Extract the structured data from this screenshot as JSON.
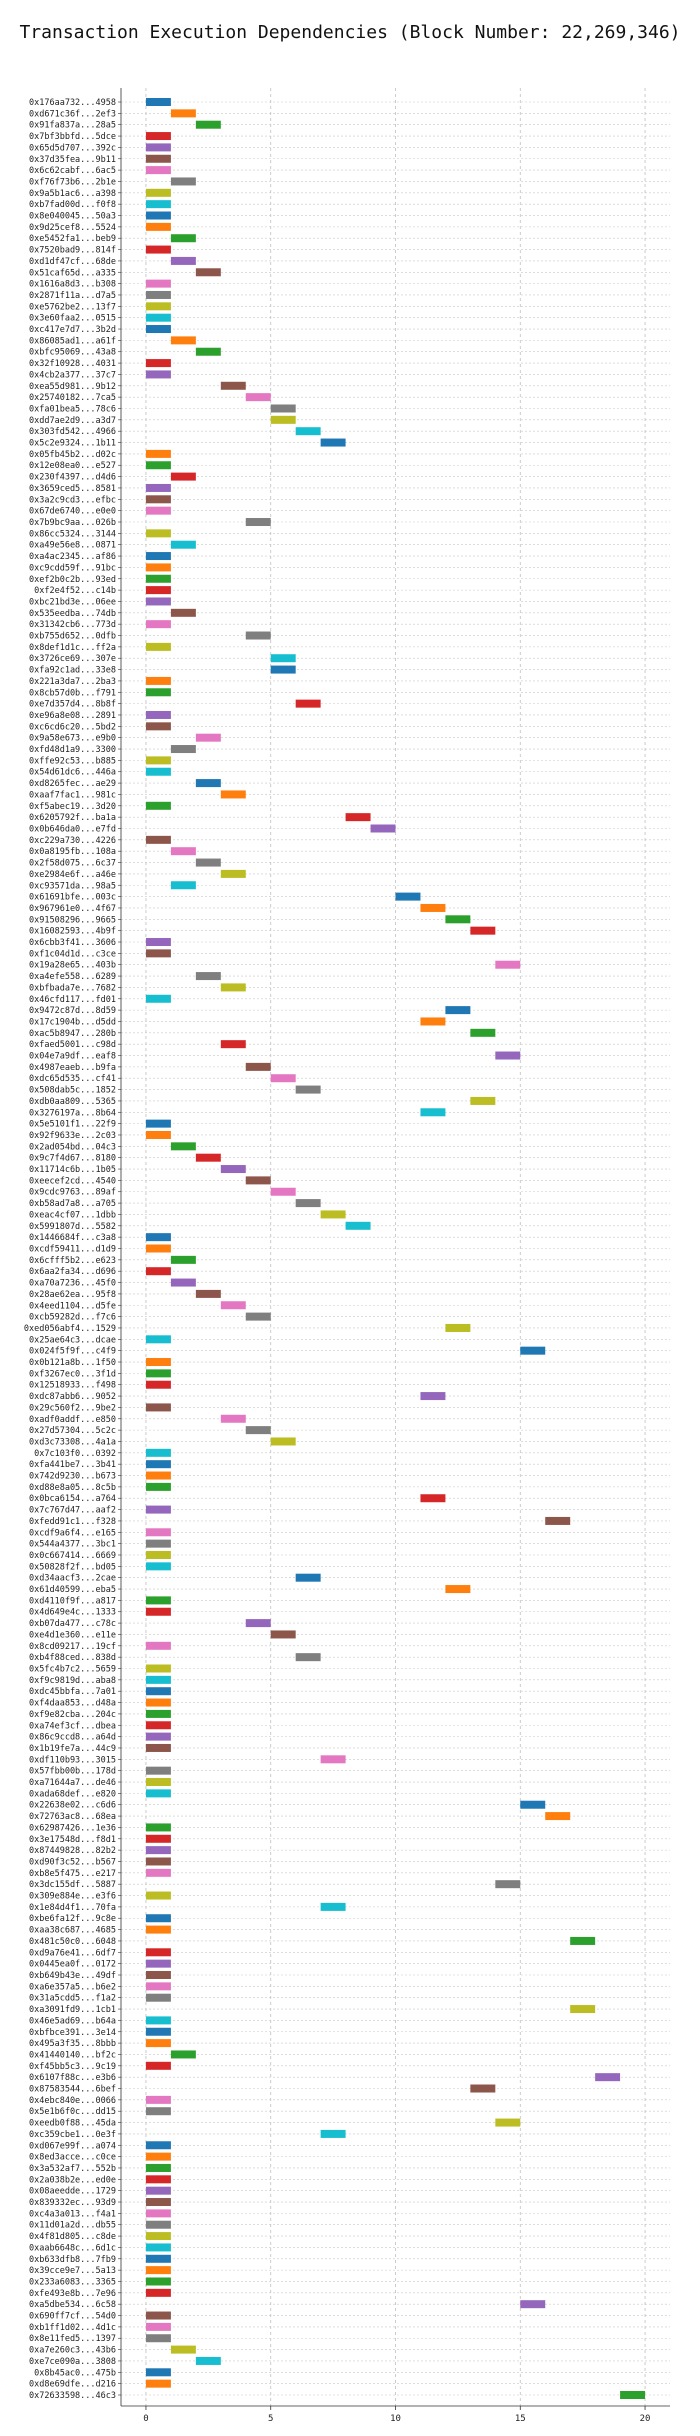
{
  "chart_data": {
    "type": "gantt",
    "title": "Transaction Execution Dependencies (Block Number: 22,269,346)",
    "xlabel": "",
    "ylabel": "",
    "x_ticks": [
      0,
      5,
      10,
      15,
      20
    ],
    "xlim": [
      -1,
      21
    ],
    "grid": true,
    "colors": [
      "#1f77b4",
      "#ff7f0e",
      "#2ca02c",
      "#d62728",
      "#9467bd",
      "#8c564b",
      "#e377c2",
      "#7f7f7f",
      "#bcbd22",
      "#17becf"
    ],
    "bar_width": 1,
    "transactions": [
      {
        "label": "0x176aa732...4958",
        "start": 0,
        "color": 0
      },
      {
        "label": "0xd671c36f...2ef3",
        "start": 1,
        "color": 1
      },
      {
        "label": "0x91fa837a...28a5",
        "start": 2,
        "color": 2
      },
      {
        "label": "0x7bf3bbfd...5dce",
        "start": 0,
        "color": 3
      },
      {
        "label": "0x65d5d707...392c",
        "start": 0,
        "color": 4
      },
      {
        "label": "0x37d35fea...9b11",
        "start": 0,
        "color": 5
      },
      {
        "label": "0x6c62cabf...6ac5",
        "start": 0,
        "color": 6
      },
      {
        "label": "0xf76f73b6...2b1e",
        "start": 1,
        "color": 7
      },
      {
        "label": "0x9a5b1ac6...a398",
        "start": 0,
        "color": 8
      },
      {
        "label": "0xb7fad00d...f0f8",
        "start": 0,
        "color": 9
      },
      {
        "label": "0x8e040045...50a3",
        "start": 0,
        "color": 0
      },
      {
        "label": "0x9d25cef8...5524",
        "start": 0,
        "color": 1
      },
      {
        "label": "0xe5452fa1...beb9",
        "start": 1,
        "color": 2
      },
      {
        "label": "0x7520bad9...814f",
        "start": 0,
        "color": 3
      },
      {
        "label": "0xd1df47cf...68de",
        "start": 1,
        "color": 4
      },
      {
        "label": "0x51caf65d...a335",
        "start": 2,
        "color": 5
      },
      {
        "label": "0x1616a8d3...b308",
        "start": 0,
        "color": 6
      },
      {
        "label": "0x2871f11a...d7a5",
        "start": 0,
        "color": 7
      },
      {
        "label": "0xe5762be2...13f7",
        "start": 0,
        "color": 8
      },
      {
        "label": "0x3e60faa2...0515",
        "start": 0,
        "color": 9
      },
      {
        "label": "0xc417e7d7...3b2d",
        "start": 0,
        "color": 0
      },
      {
        "label": "0x86085ad1...a61f",
        "start": 1,
        "color": 1
      },
      {
        "label": "0xbfc95069...43a8",
        "start": 2,
        "color": 2
      },
      {
        "label": "0x32f10928...4031",
        "start": 0,
        "color": 3
      },
      {
        "label": "0x4cb2a377...37c7",
        "start": 0,
        "color": 4
      },
      {
        "label": "0xea55d981...9b12",
        "start": 3,
        "color": 5
      },
      {
        "label": "0x25740182...7ca5",
        "start": 4,
        "color": 6
      },
      {
        "label": "0xfa01bea5...78c6",
        "start": 5,
        "color": 7
      },
      {
        "label": "0xdd7ae2d9...a3d7",
        "start": 5,
        "color": 8
      },
      {
        "label": "0x303fd542...4966",
        "start": 6,
        "color": 9
      },
      {
        "label": "0x5c2e9324...1b11",
        "start": 7,
        "color": 0
      },
      {
        "label": "0x05fb45b2...d02c",
        "start": 0,
        "color": 1
      },
      {
        "label": "0x12e08ea0...e527",
        "start": 0,
        "color": 2
      },
      {
        "label": "0x230f4397...d4d6",
        "start": 1,
        "color": 3
      },
      {
        "label": "0x3659ced5...8581",
        "start": 0,
        "color": 4
      },
      {
        "label": "0x3a2c9cd3...efbc",
        "start": 0,
        "color": 5
      },
      {
        "label": "0x67de6740...e0e0",
        "start": 0,
        "color": 6
      },
      {
        "label": "0x7b9bc9aa...026b",
        "start": 4,
        "color": 7
      },
      {
        "label": "0x86cc5324...3144",
        "start": 0,
        "color": 8
      },
      {
        "label": "0xa49e56e8...0871",
        "start": 1,
        "color": 9
      },
      {
        "label": "0xa4ac2345...af86",
        "start": 0,
        "color": 0
      },
      {
        "label": "0xc9cdd59f...91bc",
        "start": 0,
        "color": 1
      },
      {
        "label": "0xef2b0c2b...93ed",
        "start": 0,
        "color": 2
      },
      {
        "label": "0xf2e4f52...c14b",
        "start": 0,
        "color": 3
      },
      {
        "label": "0xbc21bd3e...06ee",
        "start": 0,
        "color": 4
      },
      {
        "label": "0x535eedba...74db",
        "start": 1,
        "color": 5
      },
      {
        "label": "0x31342cb6...773d",
        "start": 0,
        "color": 6
      },
      {
        "label": "0xb755d652...0dfb",
        "start": 4,
        "color": 7
      },
      {
        "label": "0x8def1d1c...ff2a",
        "start": 0,
        "color": 8
      },
      {
        "label": "0x3726ce69...307e",
        "start": 5,
        "color": 9
      },
      {
        "label": "0xfa92c1ad...33e8",
        "start": 5,
        "color": 0
      },
      {
        "label": "0x221a3da7...2ba3",
        "start": 0,
        "color": 1
      },
      {
        "label": "0x8cb57d0b...f791",
        "start": 0,
        "color": 2
      },
      {
        "label": "0xe7d357d4...8b8f",
        "start": 6,
        "color": 3
      },
      {
        "label": "0xe96a8e08...2891",
        "start": 0,
        "color": 4
      },
      {
        "label": "0xc6cd6c20...5bd2",
        "start": 0,
        "color": 5
      },
      {
        "label": "0x9a58e673...e9b0",
        "start": 2,
        "color": 6
      },
      {
        "label": "0xfd48d1a9...3300",
        "start": 1,
        "color": 7
      },
      {
        "label": "0xffe92c53...b885",
        "start": 0,
        "color": 8
      },
      {
        "label": "0x54d61dc6...446a",
        "start": 0,
        "color": 9
      },
      {
        "label": "0xd8265fec...ae29",
        "start": 2,
        "color": 0
      },
      {
        "label": "0xaaf7fac1...981c",
        "start": 3,
        "color": 1
      },
      {
        "label": "0xf5abec19...3d20",
        "start": 0,
        "color": 2
      },
      {
        "label": "0x6205792f...ba1a",
        "start": 8,
        "color": 3
      },
      {
        "label": "0x0b646da0...e7fd",
        "start": 9,
        "color": 4
      },
      {
        "label": "0xc229a730...4226",
        "start": 0,
        "color": 5
      },
      {
        "label": "0x0a8195fb...108a",
        "start": 1,
        "color": 6
      },
      {
        "label": "0x2f58d075...6c37",
        "start": 2,
        "color": 7
      },
      {
        "label": "0xe2984e6f...a46e",
        "start": 3,
        "color": 8
      },
      {
        "label": "0xc93571da...98a5",
        "start": 1,
        "color": 9
      },
      {
        "label": "0x61691bfe...003c",
        "start": 10,
        "color": 0
      },
      {
        "label": "0x967961e0...4f67",
        "start": 11,
        "color": 1
      },
      {
        "label": "0x91508296...9665",
        "start": 12,
        "color": 2
      },
      {
        "label": "0x16082593...4b9f",
        "start": 13,
        "color": 3
      },
      {
        "label": "0x6cbb3f41...3606",
        "start": 0,
        "color": 4
      },
      {
        "label": "0xf1c04d1d...c3ce",
        "start": 0,
        "color": 5
      },
      {
        "label": "0x19a28e65...403b",
        "start": 14,
        "color": 6
      },
      {
        "label": "0xa4efe558...6289",
        "start": 2,
        "color": 7
      },
      {
        "label": "0xbfbada7e...7682",
        "start": 3,
        "color": 8
      },
      {
        "label": "0x46cfd117...fd01",
        "start": 0,
        "color": 9
      },
      {
        "label": "0x9472c87d...8d59",
        "start": 12,
        "color": 0
      },
      {
        "label": "0x17c1904b...d5dd",
        "start": 11,
        "color": 1
      },
      {
        "label": "0xac5b8947...280b",
        "start": 13,
        "color": 2
      },
      {
        "label": "0xfaed5001...c98d",
        "start": 3,
        "color": 3
      },
      {
        "label": "0x04e7a9df...eaf8",
        "start": 14,
        "color": 4
      },
      {
        "label": "0x4987eaeb...b9fa",
        "start": 4,
        "color": 5
      },
      {
        "label": "0xdc65d535...cf41",
        "start": 5,
        "color": 6
      },
      {
        "label": "0x508dab5c...1852",
        "start": 6,
        "color": 7
      },
      {
        "label": "0xdb0aa809...5365",
        "start": 13,
        "color": 8
      },
      {
        "label": "0x3276197a...8b64",
        "start": 11,
        "color": 9
      },
      {
        "label": "0x5e5101f1...22f9",
        "start": 0,
        "color": 0
      },
      {
        "label": "0x92f9633e...2c03",
        "start": 0,
        "color": 1
      },
      {
        "label": "0x2ad054bd...04c3",
        "start": 1,
        "color": 2
      },
      {
        "label": "0x9c7f4d67...8180",
        "start": 2,
        "color": 3
      },
      {
        "label": "0x11714c6b...1b05",
        "start": 3,
        "color": 4
      },
      {
        "label": "0xeecef2cd...4540",
        "start": 4,
        "color": 5
      },
      {
        "label": "0x9cdc9763...89af",
        "start": 5,
        "color": 6
      },
      {
        "label": "0xb58ad7a8...a705",
        "start": 6,
        "color": 7
      },
      {
        "label": "0xeac4cf07...1dbb",
        "start": 7,
        "color": 8
      },
      {
        "label": "0x5991807d...5582",
        "start": 8,
        "color": 9
      },
      {
        "label": "0x1446684f...c3a8",
        "start": 0,
        "color": 0
      },
      {
        "label": "0xcdf59411...d1d9",
        "start": 0,
        "color": 1
      },
      {
        "label": "0x6cfff5b2...e623",
        "start": 1,
        "color": 2
      },
      {
        "label": "0x6aa2fa34...d696",
        "start": 0,
        "color": 3
      },
      {
        "label": "0xa70a7236...45f0",
        "start": 1,
        "color": 4
      },
      {
        "label": "0x28ae62ea...95f8",
        "start": 2,
        "color": 5
      },
      {
        "label": "0x4eed1104...d5fe",
        "start": 3,
        "color": 6
      },
      {
        "label": "0xcb59282d...f7c6",
        "start": 4,
        "color": 7
      },
      {
        "label": "0xed056abf4...1529",
        "start": 12,
        "color": 8
      },
      {
        "label": "0x25ae64c3...dcae",
        "start": 0,
        "color": 9
      },
      {
        "label": "0x024f5f9f...c4f9",
        "start": 15,
        "color": 0
      },
      {
        "label": "0x0b121a8b...1f50",
        "start": 0,
        "color": 1
      },
      {
        "label": "0xf3267ec0...3f1d",
        "start": 0,
        "color": 2
      },
      {
        "label": "0x12518933...f498",
        "start": 0,
        "color": 3
      },
      {
        "label": "0xdc87abb6...9052",
        "start": 11,
        "color": 4
      },
      {
        "label": "0x29c560f2...9be2",
        "start": 0,
        "color": 5
      },
      {
        "label": "0xadf0addf...e850",
        "start": 3,
        "color": 6
      },
      {
        "label": "0x27d57304...5c2c",
        "start": 4,
        "color": 7
      },
      {
        "label": "0xd3c73308...4a1a",
        "start": 5,
        "color": 8
      },
      {
        "label": "0x7c103f0...0392",
        "start": 0,
        "color": 9
      },
      {
        "label": "0xfa441be7...3b41",
        "start": 0,
        "color": 0
      },
      {
        "label": "0x742d9230...b673",
        "start": 0,
        "color": 1
      },
      {
        "label": "0xd88e8a05...8c5b",
        "start": 0,
        "color": 2
      },
      {
        "label": "0x0bca6154...a764",
        "start": 11,
        "color": 3
      },
      {
        "label": "0x7c767d47...aaf2",
        "start": 0,
        "color": 4
      },
      {
        "label": "0xfedd91c1...f328",
        "start": 16,
        "color": 5
      },
      {
        "label": "0xcdf9a6f4...e165",
        "start": 0,
        "color": 6
      },
      {
        "label": "0x544a4377...3bc1",
        "start": 0,
        "color": 7
      },
      {
        "label": "0x0c667414...6669",
        "start": 0,
        "color": 8
      },
      {
        "label": "0x50828f2f...bd05",
        "start": 0,
        "color": 9
      },
      {
        "label": "0xd34aacf3...2cae",
        "start": 6,
        "color": 0
      },
      {
        "label": "0x61d40599...eba5",
        "start": 12,
        "color": 1
      },
      {
        "label": "0xd4110f9f...a817",
        "start": 0,
        "color": 2
      },
      {
        "label": "0x4d649e4c...1333",
        "start": 0,
        "color": 3
      },
      {
        "label": "0xb07da477...c78c",
        "start": 4,
        "color": 4
      },
      {
        "label": "0xe4d1e360...e11e",
        "start": 5,
        "color": 5
      },
      {
        "label": "0x8cd09217...19cf",
        "start": 0,
        "color": 6
      },
      {
        "label": "0xb4f88ced...838d",
        "start": 6,
        "color": 7
      },
      {
        "label": "0x5fc4b7c2...5659",
        "start": 0,
        "color": 8
      },
      {
        "label": "0xf9c9819d...aba8",
        "start": 0,
        "color": 9
      },
      {
        "label": "0xdc45bbfa...7a01",
        "start": 0,
        "color": 0
      },
      {
        "label": "0xf4daa853...d48a",
        "start": 0,
        "color": 1
      },
      {
        "label": "0xf9e82cba...204c",
        "start": 0,
        "color": 2
      },
      {
        "label": "0xa74ef3cf...dbea",
        "start": 0,
        "color": 3
      },
      {
        "label": "0x86c9ccd8...a64d",
        "start": 0,
        "color": 4
      },
      {
        "label": "0x1b19fe7a...44c9",
        "start": 0,
        "color": 5
      },
      {
        "label": "0xdf110b93...3015",
        "start": 7,
        "color": 6
      },
      {
        "label": "0x57fbb00b...178d",
        "start": 0,
        "color": 7
      },
      {
        "label": "0xa71644a7...de46",
        "start": 0,
        "color": 8
      },
      {
        "label": "0xada68def...e820",
        "start": 0,
        "color": 9
      },
      {
        "label": "0x22638e02...c6d6",
        "start": 15,
        "color": 0
      },
      {
        "label": "0x72763ac8...68ea",
        "start": 16,
        "color": 1
      },
      {
        "label": "0x62987426...1e36",
        "start": 0,
        "color": 2
      },
      {
        "label": "0x3e17548d...f8d1",
        "start": 0,
        "color": 3
      },
      {
        "label": "0x87449828...82b2",
        "start": 0,
        "color": 4
      },
      {
        "label": "0xd90f3c52...b567",
        "start": 0,
        "color": 5
      },
      {
        "label": "0xb8e5f475...e217",
        "start": 0,
        "color": 6
      },
      {
        "label": "0x3dc155df...5887",
        "start": 14,
        "color": 7
      },
      {
        "label": "0x309e884e...e3f6",
        "start": 0,
        "color": 8
      },
      {
        "label": "0x1e84d4f1...70fa",
        "start": 7,
        "color": 9
      },
      {
        "label": "0xbe6fa12f...9c8e",
        "start": 0,
        "color": 0
      },
      {
        "label": "0xaa38c687...4685",
        "start": 0,
        "color": 1
      },
      {
        "label": "0x481c50c0...6048",
        "start": 17,
        "color": 2
      },
      {
        "label": "0xd9a76e41...6df7",
        "start": 0,
        "color": 3
      },
      {
        "label": "0x0445ea0f...0172",
        "start": 0,
        "color": 4
      },
      {
        "label": "0xb649b43e...49df",
        "start": 0,
        "color": 5
      },
      {
        "label": "0xa6e357a5...b6e2",
        "start": 0,
        "color": 6
      },
      {
        "label": "0x31a5cdd5...f1a2",
        "start": 0,
        "color": 7
      },
      {
        "label": "0xa3091fd9...1cb1",
        "start": 17,
        "color": 8
      },
      {
        "label": "0x46e5ad69...b64a",
        "start": 0,
        "color": 9
      },
      {
        "label": "0xbfbce391...3e14",
        "start": 0,
        "color": 0
      },
      {
        "label": "0x495a3f35...8bbb",
        "start": 0,
        "color": 1
      },
      {
        "label": "0x41440140...bf2c",
        "start": 1,
        "color": 2
      },
      {
        "label": "0xf45bb5c3...9c19",
        "start": 0,
        "color": 3
      },
      {
        "label": "0x6107f88c...e3b6",
        "start": 18,
        "color": 4
      },
      {
        "label": "0x87583544...6bef",
        "start": 13,
        "color": 5
      },
      {
        "label": "0x4ebc840e...0066",
        "start": 0,
        "color": 6
      },
      {
        "label": "0x5e1b6f0c...dd15",
        "start": 0,
        "color": 7
      },
      {
        "label": "0xeedb0f88...45da",
        "start": 14,
        "color": 8
      },
      {
        "label": "0xc359cbe1...0e3f",
        "start": 7,
        "color": 9
      },
      {
        "label": "0xd067e99f...a074",
        "start": 0,
        "color": 0
      },
      {
        "label": "0x8ed3acce...c0ce",
        "start": 0,
        "color": 1
      },
      {
        "label": "0x3a532af7...552b",
        "start": 0,
        "color": 2
      },
      {
        "label": "0x2a038b2e...ed0e",
        "start": 0,
        "color": 3
      },
      {
        "label": "0x08aeedde...1729",
        "start": 0,
        "color": 4
      },
      {
        "label": "0x839332ec...93d9",
        "start": 0,
        "color": 5
      },
      {
        "label": "0xc4a3a013...f4a1",
        "start": 0,
        "color": 6
      },
      {
        "label": "0x11d01a2d...db55",
        "start": 0,
        "color": 7
      },
      {
        "label": "0x4f81d805...c8de",
        "start": 0,
        "color": 8
      },
      {
        "label": "0xaab6648c...6d1c",
        "start": 0,
        "color": 9
      },
      {
        "label": "0xb633dfb8...7fb9",
        "start": 0,
        "color": 0
      },
      {
        "label": "0x39cce9e7...5a13",
        "start": 0,
        "color": 1
      },
      {
        "label": "0x233a6083...3365",
        "start": 0,
        "color": 2
      },
      {
        "label": "0xfe493e8b...7e96",
        "start": 0,
        "color": 3
      },
      {
        "label": "0xa5dbe534...6c58",
        "start": 15,
        "color": 4
      },
      {
        "label": "0x690ff7cf...54d0",
        "start": 0,
        "color": 5
      },
      {
        "label": "0xb1ff1d02...4d1c",
        "start": 0,
        "color": 6
      },
      {
        "label": "0x8e11fed5...1397",
        "start": 0,
        "color": 7
      },
      {
        "label": "0xa7e260c3...43b6",
        "start": 1,
        "color": 8
      },
      {
        "label": "0xe7ce090a...3808",
        "start": 2,
        "color": 9
      },
      {
        "label": "0x8b45ac0...475b",
        "start": 0,
        "color": 0
      },
      {
        "label": "0xd8e69dfe...d216",
        "start": 0,
        "color": 1
      },
      {
        "label": "0x72633598...46c3",
        "start": 19,
        "color": 2
      }
    ]
  }
}
